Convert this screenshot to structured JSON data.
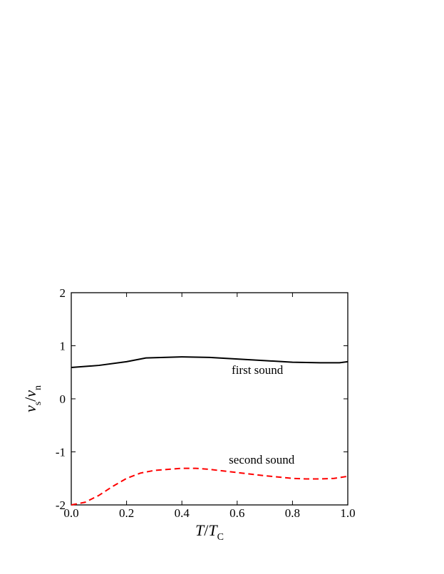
{
  "chart_data": {
    "type": "line",
    "xlabel": [
      "T",
      "/",
      "T",
      "C"
    ],
    "ylabel": [
      "v",
      "s",
      "/",
      "v",
      "n"
    ],
    "xlim": [
      0,
      1
    ],
    "ylim": [
      -2,
      2
    ],
    "xticks": [
      {
        "value": 0,
        "label": "0.0"
      },
      0.2,
      0.4,
      0.6,
      0.8,
      {
        "value": 1,
        "label": "1.0"
      }
    ],
    "yticks": [
      -2,
      -1,
      0,
      1,
      2
    ],
    "series": [
      {
        "name": "first sound",
        "color": "#000000",
        "dash": false,
        "x": [
          0,
          0.1,
          0.2,
          0.27,
          0.4,
          0.5,
          0.6,
          0.7,
          0.8,
          0.9,
          0.97,
          1.0
        ],
        "values": [
          0.59,
          0.63,
          0.7,
          0.77,
          0.79,
          0.78,
          0.75,
          0.72,
          0.69,
          0.68,
          0.68,
          0.7
        ]
      },
      {
        "name": "second sound",
        "color": "#ff0000",
        "dash": true,
        "x": [
          0,
          0.05,
          0.1,
          0.15,
          0.2,
          0.25,
          0.3,
          0.4,
          0.45,
          0.5,
          0.6,
          0.7,
          0.8,
          0.85,
          0.9,
          0.95,
          1.0
        ],
        "values": [
          -2.0,
          -1.95,
          -1.82,
          -1.65,
          -1.5,
          -1.4,
          -1.35,
          -1.31,
          -1.31,
          -1.33,
          -1.39,
          -1.45,
          -1.5,
          -1.51,
          -1.51,
          -1.5,
          -1.46
        ]
      }
    ],
    "annotations": [
      {
        "text": "first sound",
        "x": 0.58,
        "y": 0.47,
        "color": "#000000"
      },
      {
        "text": "second sound",
        "x": 0.57,
        "y": -1.22,
        "color": "#ff0000"
      }
    ]
  }
}
